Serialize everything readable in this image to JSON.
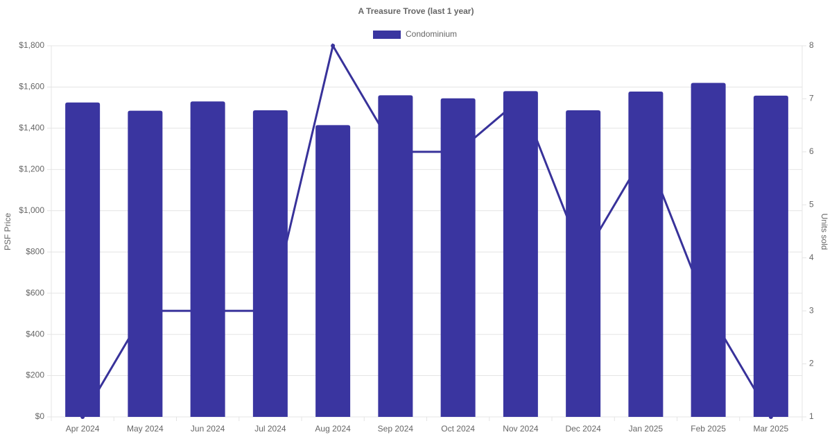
{
  "chart_data": {
    "type": "bar_line",
    "title": "A Treasure Trove (last 1 year)",
    "categories": [
      "Apr 2024",
      "May 2024",
      "Jun 2024",
      "Jul 2024",
      "Aug 2024",
      "Sep 2024",
      "Oct 2024",
      "Nov 2024",
      "Dec 2024",
      "Jan 2025",
      "Feb 2025",
      "Mar 2025"
    ],
    "series": [
      {
        "name": "Condominium",
        "type": "bar",
        "color": "#3a35a0",
        "values": [
          1525,
          1485,
          1530,
          1487,
          1415,
          1560,
          1545,
          1580,
          1487,
          1578,
          1620,
          1558
        ]
      },
      {
        "type": "line",
        "axis": "y2",
        "color": "#38329a",
        "values": [
          1,
          3,
          3,
          3,
          8,
          6,
          6,
          7,
          4,
          6,
          3,
          1
        ]
      }
    ],
    "y_label": "PSF Price",
    "y2_label": "Units sold",
    "ylim": [
      0,
      1800
    ],
    "yticks": [
      {
        "value": 0,
        "label": "$0"
      },
      {
        "value": 200,
        "label": "$200"
      },
      {
        "value": 400,
        "label": "$400"
      },
      {
        "value": 600,
        "label": "$600"
      },
      {
        "value": 800,
        "label": "$800"
      },
      {
        "value": 1000,
        "label": "$1,000"
      },
      {
        "value": 1200,
        "label": "$1,200"
      },
      {
        "value": 1400,
        "label": "$1,400"
      },
      {
        "value": 1600,
        "label": "$1,600"
      },
      {
        "value": 1800,
        "label": "$1,800"
      }
    ],
    "y2lim": [
      1,
      8
    ],
    "y2ticks": [
      1,
      2,
      3,
      4,
      5,
      6,
      7,
      8
    ],
    "grid": true,
    "legend": "top"
  }
}
